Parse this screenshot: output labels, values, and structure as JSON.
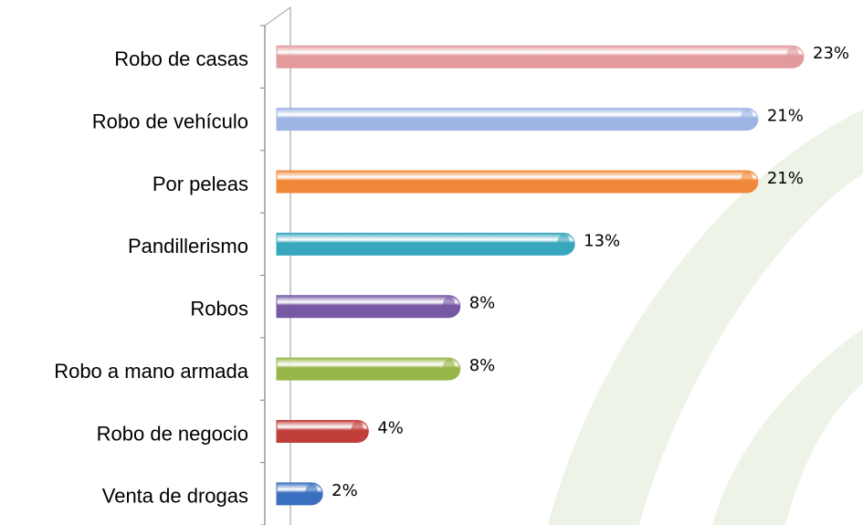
{
  "chart_data": {
    "type": "bar",
    "orientation": "horizontal",
    "categories": [
      "Robo de casas",
      "Robo de vehículo",
      "Por peleas",
      "Pandillerismo",
      "Robos",
      "Robo a mano armada",
      "Robo de negocio",
      "Venta de drogas"
    ],
    "values": [
      23,
      21,
      21,
      13,
      8,
      8,
      4,
      2
    ],
    "value_labels": [
      "23%",
      "21%",
      "21%",
      "13%",
      "8%",
      "8%",
      "4%",
      "2%"
    ],
    "colors": [
      "#e39a9c",
      "#9db3e4",
      "#f0883a",
      "#38a7be",
      "#7658a4",
      "#98b648",
      "#c13f3b",
      "#3b6fbf"
    ]
  }
}
